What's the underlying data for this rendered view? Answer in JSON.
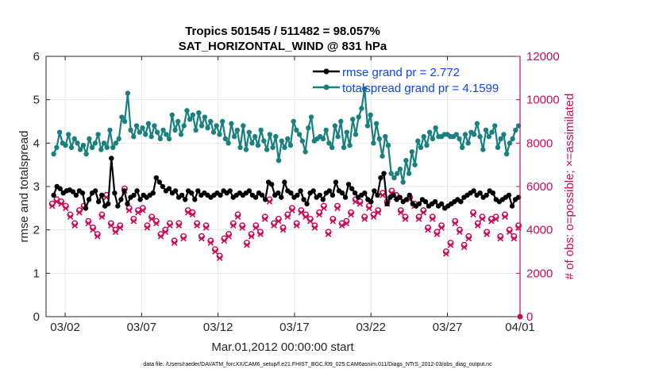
{
  "chart_data": {
    "type": "line",
    "title": "Tropics 501545 / 511482 = 98.057%",
    "subtitle": "SAT_HORIZONTAL_WIND @ 831 hPa",
    "xlabel": "Mar.01,2012 00:00:00 start",
    "ylabel_left": "rmse and totalspread",
    "ylabel_right": "# of obs: o=possible; ×=assimilated",
    "footnote": "data file: /Users/raeder/DAI/ATM_forcXX/CAM6_setup/f.e21.FHIST_BGC.f09_025.CAM6assim.011/Diags_NTrS_2012-03/obs_diag_output.nc",
    "xlim": [
      0.5,
      31.5
    ],
    "ylim_left": [
      0,
      6
    ],
    "ylim_right": [
      0,
      12000
    ],
    "x_ticks": [
      {
        "value": 1.75,
        "label": "03/02"
      },
      {
        "value": 6.75,
        "label": "03/07"
      },
      {
        "value": 11.75,
        "label": "03/12"
      },
      {
        "value": 16.75,
        "label": "03/17"
      },
      {
        "value": 21.75,
        "label": "03/22"
      },
      {
        "value": 26.75,
        "label": "03/27"
      },
      {
        "value": 31.75,
        "label": "04/01"
      }
    ],
    "y_ticks_left": [
      "0",
      "1",
      "2",
      "3",
      "4",
      "5",
      "6"
    ],
    "y_ticks_right": [
      "0",
      "2000",
      "4000",
      "6000",
      "8000",
      "10000",
      "12000"
    ],
    "legend": [
      "rmse grand pr = 2.772",
      "totalspread grand pr = 4.1599"
    ],
    "colors": {
      "rmse": "#000000",
      "spread": "#198080",
      "obs": "#cc0a5a",
      "legend_text": "#0a44ff",
      "grid": "#e6e6e6"
    },
    "series": [
      {
        "name": "rmse",
        "axis": "left",
        "values": [
          2.8,
          3.0,
          2.95,
          2.85,
          2.9,
          2.92,
          2.88,
          2.8,
          2.9,
          2.85,
          2.5,
          2.7,
          2.85,
          2.9,
          2.65,
          2.8,
          2.55,
          2.6,
          3.65,
          2.85,
          2.55,
          2.7,
          2.9,
          2.6,
          2.75,
          2.8,
          2.9,
          2.7,
          2.8,
          2.75,
          2.8,
          2.85,
          3.2,
          3.1,
          3.0,
          2.9,
          2.95,
          2.85,
          2.9,
          2.75,
          2.8,
          2.7,
          2.9,
          2.85,
          2.7,
          2.9,
          2.8,
          2.85,
          2.8,
          2.75,
          2.8,
          2.85,
          2.8,
          2.9,
          2.85,
          2.9,
          2.75,
          2.8,
          2.85,
          2.8,
          2.85,
          2.9,
          2.8,
          2.75,
          2.85,
          2.8,
          2.7,
          3.1,
          3.05,
          2.8,
          2.85,
          2.75,
          3.1,
          2.9,
          2.85,
          2.75,
          2.8,
          2.9,
          2.7,
          2.6,
          2.85,
          2.9,
          2.75,
          2.8,
          2.7,
          2.85,
          2.9,
          2.8,
          3.1,
          2.9,
          2.85,
          2.75,
          3.05,
          2.95,
          2.85,
          2.75,
          2.8,
          2.85,
          2.7,
          2.65,
          2.9,
          2.8,
          3.2,
          3.3,
          2.6,
          2.75,
          2.8,
          2.7,
          2.75,
          2.65,
          2.7,
          2.8,
          2.6,
          2.55,
          2.6,
          2.7,
          2.65,
          2.55,
          2.6,
          2.65,
          2.55,
          2.6,
          2.5,
          2.55,
          2.6,
          2.65,
          2.7,
          2.65,
          2.75,
          2.8,
          2.85,
          2.9,
          2.8,
          2.85,
          2.75,
          2.8,
          2.9,
          2.85,
          2.7,
          2.65,
          2.7,
          2.75,
          2.8,
          2.55,
          2.7,
          2.75
        ]
      },
      {
        "name": "totalspread",
        "axis": "left",
        "values": [
          3.75,
          3.9,
          4.25,
          4.0,
          3.95,
          4.2,
          3.9,
          4.1,
          4.0,
          3.85,
          3.95,
          3.75,
          4.1,
          3.9,
          4.0,
          4.2,
          3.85,
          4.0,
          3.9,
          4.3,
          3.9,
          4.0,
          4.1,
          4.6,
          4.5,
          5.15,
          4.3,
          4.15,
          4.4,
          4.25,
          4.35,
          4.2,
          4.45,
          4.15,
          4.4,
          4.25,
          4.1,
          4.3,
          4.2,
          4.1,
          4.65,
          4.3,
          4.5,
          4.2,
          4.4,
          4.75,
          4.55,
          4.65,
          4.3,
          4.7,
          4.4,
          4.6,
          4.35,
          4.5,
          4.25,
          4.4,
          4.2,
          4.5,
          4.1,
          4.0,
          4.45,
          4.15,
          4.3,
          3.9,
          4.4,
          3.85,
          4.25,
          4.0,
          4.15,
          3.95,
          4.3,
          4.05,
          3.85,
          4.2,
          3.9,
          4.15,
          3.6,
          4.05,
          3.9,
          4.1,
          3.95,
          4.5,
          4.3,
          4.2,
          4.05,
          3.8,
          4.35,
          4.6,
          4.05,
          4.1,
          4.15,
          4.1,
          4.3,
          4.0,
          3.9,
          4.4,
          4.15,
          4.5,
          3.9,
          4.25,
          3.95,
          4.55,
          4.2,
          4.6,
          4.8,
          5.25,
          4.4,
          4.65,
          4.0,
          4.45,
          4.1,
          3.7,
          4.15,
          3.95,
          3.3,
          3.2,
          3.3,
          3.4,
          3.1,
          3.6,
          3.3,
          3.8,
          3.5,
          4.05,
          3.9,
          4.15,
          3.95,
          4.25,
          4.1,
          4.35,
          4.15,
          4.15,
          4.2,
          4.2,
          4.15,
          4.15,
          4.2,
          4.1,
          3.9,
          4.2,
          4.0,
          4.25,
          4.2,
          4.45,
          4.15,
          3.85,
          4.3,
          4.15,
          4.25,
          4.4,
          3.9,
          4.1,
          4.2,
          3.75,
          4.0,
          4.1,
          4.3,
          4.4
        ]
      },
      {
        "name": "obs_possible",
        "axis": "right",
        "values": [
          5200,
          5400,
          5300,
          5100,
          4700,
          4300,
          4900,
          5100,
          4400,
          4100,
          3800,
          4700,
          5600,
          4300,
          4000,
          4200,
          5900,
          5000,
          4500,
          4900,
          5000,
          4200,
          4600,
          4400,
          3800,
          4000,
          4300,
          3500,
          4300,
          3700,
          4900,
          4800,
          4300,
          3700,
          4200,
          3500,
          3100,
          2800,
          3600,
          3800,
          4300,
          4700,
          4200,
          3400,
          3800,
          4200,
          3900,
          4600,
          5400,
          4300,
          4500,
          4100,
          4700,
          5000,
          4300,
          4900,
          4700,
          4500,
          4200,
          4800,
          5100,
          3900,
          4500,
          5100,
          4300,
          4400,
          4800,
          5400,
          5300,
          4600,
          5100,
          4700,
          4900,
          5700,
          5300,
          5800,
          5600,
          4900,
          4600,
          5500,
          5200,
          4600,
          4900,
          4100,
          4600,
          3900,
          4200,
          3000,
          3400,
          4400,
          4000,
          3300,
          3700,
          4800,
          4300,
          4600,
          3900,
          4500,
          4600,
          3700,
          4700,
          4000,
          3700,
          4200
        ]
      },
      {
        "name": "obs_assimilated",
        "axis": "right",
        "values": [
          5100,
          5300,
          5200,
          5000,
          4600,
          4200,
          4800,
          5000,
          4300,
          4000,
          3700,
          4600,
          5500,
          4200,
          3900,
          4100,
          5800,
          4900,
          4400,
          4800,
          4900,
          4100,
          4500,
          4300,
          3700,
          3900,
          4200,
          3400,
          4200,
          3600,
          4800,
          4700,
          4200,
          3600,
          4100,
          3400,
          3000,
          2700,
          3500,
          3700,
          4200,
          4600,
          4100,
          3300,
          3700,
          4100,
          3800,
          4500,
          5300,
          4200,
          4400,
          4000,
          4600,
          4900,
          4200,
          4800,
          4600,
          4400,
          4100,
          4700,
          5000,
          3800,
          4400,
          5000,
          4200,
          4300,
          4700,
          5300,
          5200,
          4500,
          5000,
          4600,
          4800,
          5600,
          5200,
          5700,
          5500,
          4800,
          4500,
          5400,
          5100,
          4500,
          4800,
          4000,
          4500,
          3800,
          4100,
          2900,
          3300,
          4300,
          3900,
          3200,
          3600,
          4700,
          4200,
          4500,
          3800,
          4400,
          4500,
          3600,
          4600,
          3900,
          3600,
          4100
        ]
      }
    ]
  }
}
